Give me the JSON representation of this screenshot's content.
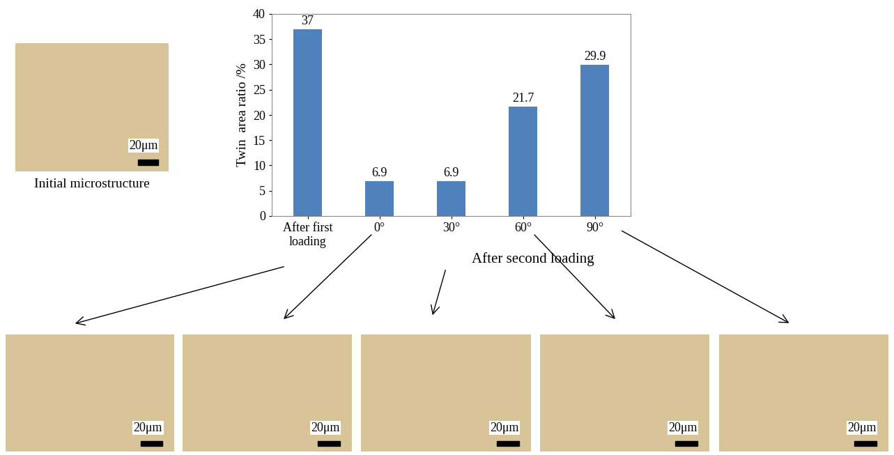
{
  "chart_data": {
    "type": "bar",
    "y_label": "Twin  area ratio /%",
    "categories": [
      "After first\nloading",
      "0°",
      "30°",
      "60°",
      "90°"
    ],
    "values": [
      37,
      6.9,
      6.9,
      21.7,
      29.9
    ],
    "color": "#4f81bd",
    "ylim": [
      0,
      40
    ],
    "yticks": [
      0,
      5,
      10,
      15,
      20,
      25,
      30,
      35,
      40
    ],
    "grid": false,
    "data_labels": true,
    "annotations": {
      "initial": "Initial microstructure",
      "group": "After second loading",
      "scale_bar": "20μm"
    }
  }
}
